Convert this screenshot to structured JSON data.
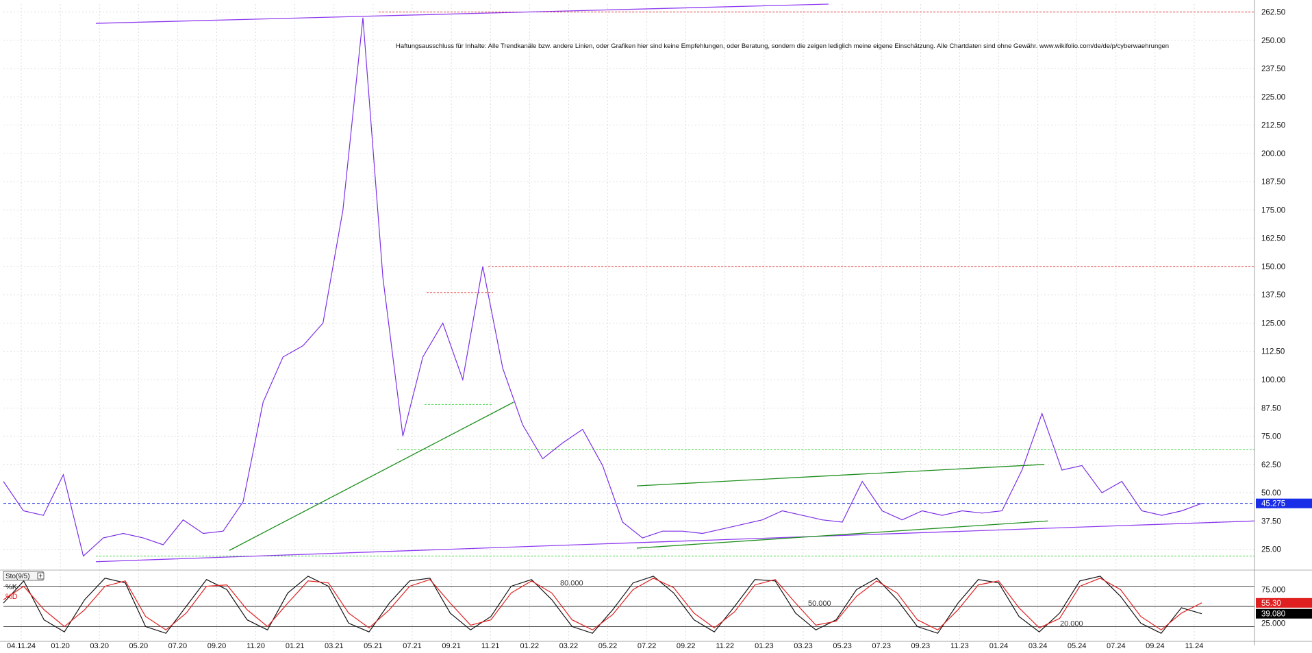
{
  "disclaimer": "Haftungsausschluss für Inhalte: Alle Trendkanäle bzw. andere Linien, oder Grafiken hier sind keine Empfehlungen, oder Beratung, sondern die zeigen lediglich meine eigene Einschätzung. Alle Chartdaten sind ohne Gewähr. www.wikifolio.com/de/de/p/cyberwaehrungen",
  "colors": {
    "price": "#7b2fe6",
    "trend_purple": "#8e3cf0",
    "trend_green": "#1f8f1f",
    "resistance_red": "#e03030",
    "support_green": "#3fd23f",
    "current_blue": "#1a2ee8",
    "stoch_k": "#111111",
    "stoch_d": "#e02020",
    "grid": "#c8c8c8"
  },
  "chart_data": [
    {
      "type": "line",
      "series": [
        {
          "x": [
            "11.2019",
            "12.2019",
            "01.2020",
            "02.2020",
            "03.2020",
            "04.2020",
            "05.2020",
            "06.2020",
            "07.2020",
            "08.2020",
            "09.2020",
            "10.2020",
            "11.2020",
            "12.2020",
            "01.2021",
            "02.2021",
            "03.2021",
            "04.2021",
            "05.2021",
            "06.2021",
            "07.2021",
            "08.2021",
            "09.2021",
            "10.2021",
            "11.2021",
            "12.2021",
            "01.2022",
            "02.2022",
            "03.2022",
            "04.2022",
            "05.2022",
            "06.2022",
            "07.2022",
            "08.2022",
            "09.2022",
            "10.2022",
            "11.2022",
            "12.2022",
            "01.2023",
            "02.2023",
            "03.2023",
            "04.2023",
            "05.2023",
            "06.2023",
            "07.2023",
            "08.2023",
            "09.2023",
            "10.2023",
            "11.2023",
            "12.2023",
            "01.2024",
            "02.2024",
            "03.2024",
            "04.2024",
            "05.2024",
            "06.2024",
            "07.2024",
            "08.2024",
            "09.2024",
            "10.2024",
            "11.2024"
          ],
          "values": [
            55,
            42,
            40,
            58,
            22,
            30,
            32,
            30,
            27,
            38,
            32,
            33,
            46,
            90,
            110,
            115,
            125,
            175,
            260,
            145,
            75,
            110,
            125,
            100,
            150,
            105,
            80,
            65,
            72,
            78,
            62,
            37,
            30,
            33,
            33,
            32,
            34,
            36,
            38,
            42,
            40,
            38,
            37,
            55,
            42,
            38,
            42,
            40,
            42,
            41,
            42,
            60,
            85,
            60,
            62,
            50,
            55,
            42,
            40,
            42,
            45.275
          ]
        }
      ],
      "xticks": [
        "04.11.24",
        "01.20",
        "03.20",
        "05.20",
        "07.20",
        "09.20",
        "11.20",
        "01.21",
        "03.21",
        "05.21",
        "07.21",
        "09.21",
        "11.21",
        "01.22",
        "03.22",
        "05.22",
        "07.22",
        "09.22",
        "11.22",
        "01.23",
        "03.23",
        "05.23",
        "07.23",
        "09.23",
        "11.23",
        "01.24",
        "03.24",
        "05.24",
        "07.24",
        "09.24",
        "11.24"
      ],
      "yticks": [
        "25.00",
        "37.50",
        "50.00",
        "62.50",
        "75.00",
        "87.50",
        "100.00",
        "112.50",
        "125.00",
        "137.50",
        "150.00",
        "162.50",
        "175.00",
        "187.50",
        "200.00",
        "212.50",
        "225.00",
        "237.50",
        "250.00",
        "262.50"
      ],
      "ylim": [
        17,
        266
      ],
      "grid": true,
      "current_value_label": "45.275",
      "red_levels": [
        262.5,
        150.0,
        138.5
      ],
      "green_levels": [
        69.0,
        89.0,
        22.0
      ]
    },
    {
      "type": "line",
      "title": "Sto(9/5)",
      "series": [
        {
          "name": "%K",
          "values": [
            55,
            88,
            30,
            12,
            60,
            92,
            85,
            20,
            10,
            50,
            90,
            75,
            30,
            15,
            70,
            95,
            80,
            25,
            12,
            55,
            88,
            92,
            40,
            15,
            35,
            80,
            90,
            60,
            20,
            10,
            45,
            85,
            95,
            70,
            30,
            12,
            50,
            90,
            88,
            40,
            15,
            30,
            75,
            92,
            60,
            20,
            10,
            55,
            90,
            85,
            35,
            12,
            40,
            88,
            95,
            65,
            25,
            10,
            48,
            39.08
          ]
        },
        {
          "name": "%D",
          "values": [
            60,
            80,
            45,
            20,
            45,
            80,
            88,
            35,
            15,
            40,
            80,
            82,
            45,
            20,
            55,
            88,
            85,
            40,
            18,
            45,
            80,
            90,
            55,
            22,
            30,
            70,
            88,
            70,
            30,
            15,
            38,
            75,
            92,
            78,
            40,
            18,
            42,
            82,
            90,
            55,
            22,
            28,
            65,
            88,
            70,
            30,
            15,
            45,
            82,
            88,
            48,
            18,
            32,
            80,
            92,
            75,
            35,
            15,
            40,
            55.3
          ]
        }
      ],
      "yticks": [
        "25.000",
        "75.000"
      ],
      "level_labels": [
        "80.000",
        "50.000",
        "20.000"
      ],
      "ylim": [
        0,
        100
      ],
      "k_label": "%K",
      "d_label": "%D",
      "d_value_label": "55.30",
      "k_value_label": "39.080"
    }
  ]
}
